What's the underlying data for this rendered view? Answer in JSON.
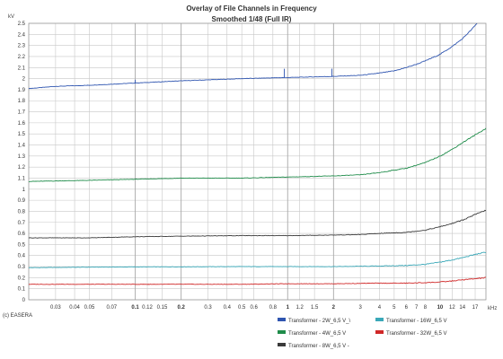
{
  "chart_data": {
    "type": "line",
    "title": "Overlay of File Channels in Frequency",
    "subtitle": "Smoothed 1/48 (Full IR)",
    "y_unit": "kV",
    "x_unit": "kHz",
    "x_scale": "log",
    "xlim": [
      0.02,
      20
    ],
    "ylim": [
      0,
      2.5
    ],
    "grid": true,
    "legend_position": "bottom-right",
    "credit": "(c) EASERA",
    "y_ticks": [
      "0",
      "0.1",
      "0.2",
      "0.3",
      "0.4",
      "0.5",
      "0.6",
      "0.7",
      "0.8",
      "0.9",
      "1",
      "1.1",
      "1.2",
      "1.3",
      "1.4",
      "1.5",
      "1.6",
      "1.7",
      "1.8",
      "1.9",
      "2",
      "2.1",
      "2.2",
      "2.3",
      "2.4",
      "2.5"
    ],
    "x_ticks": [
      {
        "v": 0.03,
        "label": "0.03",
        "bold": false
      },
      {
        "v": 0.04,
        "label": "0.04",
        "bold": false
      },
      {
        "v": 0.05,
        "label": "0.05",
        "bold": false
      },
      {
        "v": 0.07,
        "label": "0.07",
        "bold": false
      },
      {
        "v": 0.1,
        "label": "0.1",
        "bold": true
      },
      {
        "v": 0.12,
        "label": "0.12",
        "bold": false
      },
      {
        "v": 0.15,
        "label": "0.15",
        "bold": false
      },
      {
        "v": 0.2,
        "label": "0.2",
        "bold": true
      },
      {
        "v": 0.3,
        "label": "0.3",
        "bold": false
      },
      {
        "v": 0.4,
        "label": "0.4",
        "bold": false
      },
      {
        "v": 0.5,
        "label": "0.5",
        "bold": false
      },
      {
        "v": 0.6,
        "label": "0.6",
        "bold": false
      },
      {
        "v": 0.8,
        "label": "0.8",
        "bold": false
      },
      {
        "v": 1,
        "label": "1",
        "bold": true
      },
      {
        "v": 1.2,
        "label": "1.2",
        "bold": false
      },
      {
        "v": 1.5,
        "label": "1.5",
        "bold": false
      },
      {
        "v": 2,
        "label": "2",
        "bold": true
      },
      {
        "v": 3,
        "label": "3",
        "bold": false
      },
      {
        "v": 4,
        "label": "4",
        "bold": false
      },
      {
        "v": 5,
        "label": "5",
        "bold": false
      },
      {
        "v": 6,
        "label": "6",
        "bold": false
      },
      {
        "v": 7,
        "label": "7",
        "bold": false
      },
      {
        "v": 8,
        "label": "8",
        "bold": false
      },
      {
        "v": 10,
        "label": "10",
        "bold": true
      },
      {
        "v": 12,
        "label": "12",
        "bold": false
      },
      {
        "v": 14,
        "label": "14",
        "bold": false
      },
      {
        "v": 17,
        "label": "17",
        "bold": false
      }
    ],
    "series": [
      {
        "name": "Transformer - 2W_6,5 V_\\",
        "color": "#2f55b0",
        "x": [
          0.02,
          0.03,
          0.05,
          0.1,
          0.2,
          0.5,
          1,
          2,
          3,
          4,
          5,
          6,
          7,
          8,
          10,
          12,
          14,
          16,
          17.5
        ],
        "y": [
          1.91,
          1.93,
          1.94,
          1.96,
          1.98,
          2.0,
          2.01,
          2.02,
          2.03,
          2.05,
          2.07,
          2.1,
          2.13,
          2.16,
          2.22,
          2.29,
          2.36,
          2.44,
          2.5
        ]
      },
      {
        "name": "Transformer - 16W_6,5 V",
        "color": "#3aa8b8",
        "x": [
          0.02,
          0.05,
          0.1,
          0.2,
          0.5,
          1,
          2,
          4,
          6,
          8,
          10,
          12,
          14,
          17,
          20
        ],
        "y": [
          0.29,
          0.295,
          0.297,
          0.298,
          0.3,
          0.3,
          0.3,
          0.305,
          0.31,
          0.32,
          0.34,
          0.36,
          0.38,
          0.41,
          0.43
        ]
      },
      {
        "name": "Transformer - 4W_6,5 V",
        "color": "#1f8c4a",
        "x": [
          0.02,
          0.05,
          0.1,
          0.2,
          0.5,
          1,
          2,
          3,
          4,
          6,
          8,
          10,
          12,
          14,
          17,
          20
        ],
        "y": [
          1.07,
          1.08,
          1.09,
          1.1,
          1.1,
          1.11,
          1.12,
          1.13,
          1.15,
          1.19,
          1.24,
          1.3,
          1.36,
          1.42,
          1.49,
          1.55
        ]
      },
      {
        "name": "Transformer - 32W_6,5 V",
        "color": "#d02828",
        "x": [
          0.02,
          0.05,
          0.1,
          0.2,
          0.5,
          1,
          2,
          4,
          6,
          8,
          10,
          12,
          14,
          17,
          20
        ],
        "y": [
          0.14,
          0.14,
          0.14,
          0.14,
          0.14,
          0.145,
          0.145,
          0.15,
          0.15,
          0.155,
          0.16,
          0.17,
          0.18,
          0.19,
          0.2
        ]
      },
      {
        "name": "Transformer - 8W_6,5 V -",
        "color": "#3a3a3a",
        "x": [
          0.02,
          0.05,
          0.1,
          0.2,
          0.5,
          1,
          2,
          3,
          4,
          6,
          8,
          10,
          12,
          14,
          17,
          20
        ],
        "y": [
          0.56,
          0.56,
          0.57,
          0.575,
          0.58,
          0.58,
          0.585,
          0.59,
          0.6,
          0.61,
          0.63,
          0.66,
          0.69,
          0.72,
          0.77,
          0.81
        ]
      }
    ]
  }
}
